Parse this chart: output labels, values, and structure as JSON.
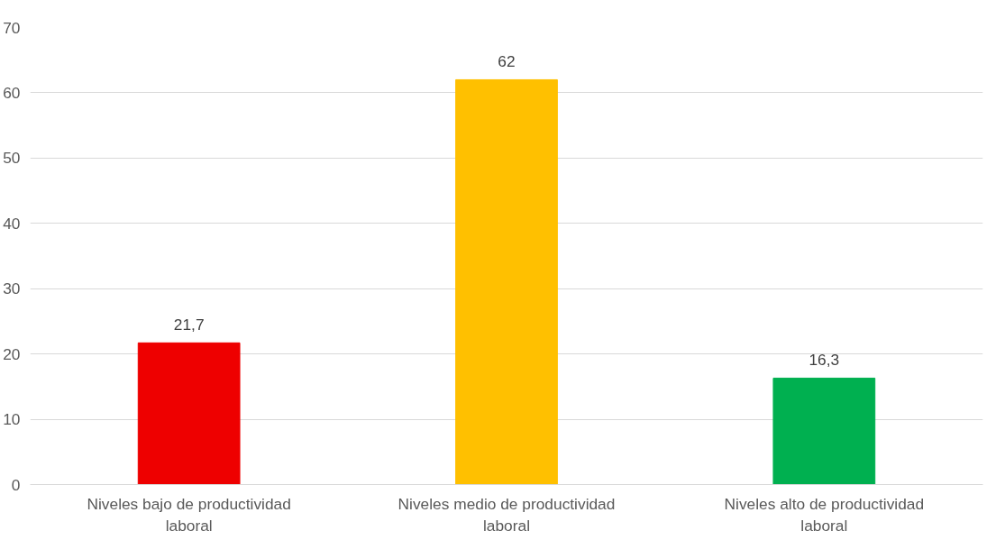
{
  "chart_data": {
    "type": "bar",
    "categories": [
      "Niveles bajo de productividad laboral",
      "Niveles medio de productividad laboral",
      "Niveles alto de productividad laboral"
    ],
    "values": [
      21.7,
      62,
      16.3
    ],
    "colors": [
      "#ee0000",
      "#ffc000",
      "#00b050"
    ],
    "value_labels": [
      "21,7",
      "62",
      "16,3"
    ],
    "ylim": [
      0,
      70
    ],
    "yticks": [
      0,
      10,
      20,
      30,
      40,
      50,
      60,
      70
    ],
    "grid": "y"
  }
}
